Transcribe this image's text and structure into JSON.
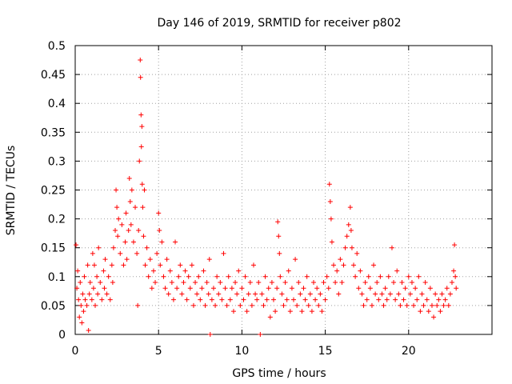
{
  "chart_data": {
    "type": "scatter",
    "title": "Day 146 of 2019, SRMTID for receiver p802",
    "xlabel": "GPS time / hours",
    "ylabel": "SRMTID / TECUs",
    "xlim": [
      0,
      25
    ],
    "ylim": [
      0,
      0.5
    ],
    "xticks": [
      0,
      5,
      10,
      15,
      20
    ],
    "xtick_labels": [
      "0",
      "5",
      "10",
      "15",
      "20"
    ],
    "yticks": [
      0,
      0.05,
      0.1,
      0.15,
      0.2,
      0.25,
      0.3,
      0.35,
      0.4,
      0.45,
      0.5
    ],
    "ytick_labels": [
      "0",
      "0.05",
      "0.1",
      "0.15",
      "0.2",
      "0.25",
      "0.3",
      "0.35",
      "0.4",
      "0.45",
      "0.5"
    ],
    "grid": true,
    "marker": "+",
    "color": "#ff0000",
    "series": [
      {
        "name": "SRMTID",
        "points": [
          [
            0.05,
            0.155
          ],
          [
            0.1,
            0.08
          ],
          [
            0.15,
            0.11
          ],
          [
            0.2,
            0.06
          ],
          [
            0.25,
            0.03
          ],
          [
            0.3,
            0.09
          ],
          [
            0.35,
            0.05
          ],
          [
            0.4,
            0.02
          ],
          [
            0.45,
            0.07
          ],
          [
            0.5,
            0.04
          ],
          [
            0.55,
            0.1
          ],
          [
            0.6,
            0.06
          ],
          [
            0.7,
            0.05
          ],
          [
            0.75,
            0.12
          ],
          [
            0.8,
            0.007
          ],
          [
            0.85,
            0.07
          ],
          [
            0.9,
            0.09
          ],
          [
            1.0,
            0.06
          ],
          [
            1.05,
            0.14
          ],
          [
            1.1,
            0.08
          ],
          [
            1.15,
            0.12
          ],
          [
            1.2,
            0.05
          ],
          [
            1.3,
            0.1
          ],
          [
            1.35,
            0.07
          ],
          [
            1.4,
            0.15
          ],
          [
            1.5,
            0.09
          ],
          [
            1.6,
            0.06
          ],
          [
            1.7,
            0.11
          ],
          [
            1.75,
            0.08
          ],
          [
            1.8,
            0.13
          ],
          [
            1.9,
            0.07
          ],
          [
            2.0,
            0.1
          ],
          [
            2.1,
            0.06
          ],
          [
            2.2,
            0.12
          ],
          [
            2.25,
            0.09
          ],
          [
            2.3,
            0.15
          ],
          [
            2.4,
            0.18
          ],
          [
            2.45,
            0.25
          ],
          [
            2.5,
            0.22
          ],
          [
            2.55,
            0.17
          ],
          [
            2.6,
            0.2
          ],
          [
            2.7,
            0.14
          ],
          [
            2.8,
            0.19
          ],
          [
            2.9,
            0.12
          ],
          [
            3.0,
            0.16
          ],
          [
            3.05,
            0.21
          ],
          [
            3.1,
            0.13
          ],
          [
            3.2,
            0.18
          ],
          [
            3.25,
            0.27
          ],
          [
            3.3,
            0.23
          ],
          [
            3.35,
            0.19
          ],
          [
            3.4,
            0.25
          ],
          [
            3.5,
            0.16
          ],
          [
            3.6,
            0.22
          ],
          [
            3.7,
            0.14
          ],
          [
            3.75,
            0.05
          ],
          [
            3.8,
            0.18
          ],
          [
            3.85,
            0.3
          ],
          [
            3.9,
            0.475
          ],
          [
            3.92,
            0.445
          ],
          [
            3.95,
            0.38
          ],
          [
            3.97,
            0.325
          ],
          [
            4.0,
            0.36
          ],
          [
            4.02,
            0.26
          ],
          [
            4.05,
            0.22
          ],
          [
            4.1,
            0.17
          ],
          [
            4.15,
            0.25
          ],
          [
            4.2,
            0.12
          ],
          [
            4.3,
            0.15
          ],
          [
            4.4,
            0.1
          ],
          [
            4.5,
            0.13
          ],
          [
            4.6,
            0.08
          ],
          [
            4.7,
            0.11
          ],
          [
            4.8,
            0.09
          ],
          [
            4.9,
            0.14
          ],
          [
            5.0,
            0.21
          ],
          [
            5.05,
            0.18
          ],
          [
            5.1,
            0.12
          ],
          [
            5.2,
            0.16
          ],
          [
            5.3,
            0.1
          ],
          [
            5.4,
            0.08
          ],
          [
            5.5,
            0.13
          ],
          [
            5.6,
            0.07
          ],
          [
            5.7,
            0.11
          ],
          [
            5.8,
            0.09
          ],
          [
            5.9,
            0.06
          ],
          [
            6.0,
            0.16
          ],
          [
            6.1,
            0.08
          ],
          [
            6.2,
            0.1
          ],
          [
            6.3,
            0.12
          ],
          [
            6.4,
            0.07
          ],
          [
            6.5,
            0.09
          ],
          [
            6.6,
            0.11
          ],
          [
            6.7,
            0.06
          ],
          [
            6.8,
            0.1
          ],
          [
            6.9,
            0.08
          ],
          [
            7.0,
            0.12
          ],
          [
            7.1,
            0.05
          ],
          [
            7.2,
            0.09
          ],
          [
            7.3,
            0.07
          ],
          [
            7.4,
            0.1
          ],
          [
            7.5,
            0.06
          ],
          [
            7.6,
            0.08
          ],
          [
            7.7,
            0.11
          ],
          [
            7.8,
            0.05
          ],
          [
            7.9,
            0.09
          ],
          [
            8.0,
            0.07
          ],
          [
            8.05,
            0.13
          ],
          [
            8.1,
            0.0
          ],
          [
            8.2,
            0.06
          ],
          [
            8.3,
            0.08
          ],
          [
            8.4,
            0.05
          ],
          [
            8.5,
            0.1
          ],
          [
            8.6,
            0.07
          ],
          [
            8.7,
            0.09
          ],
          [
            8.8,
            0.06
          ],
          [
            8.9,
            0.14
          ],
          [
            9.0,
            0.08
          ],
          [
            9.1,
            0.05
          ],
          [
            9.2,
            0.1
          ],
          [
            9.3,
            0.06
          ],
          [
            9.4,
            0.08
          ],
          [
            9.5,
            0.04
          ],
          [
            9.6,
            0.09
          ],
          [
            9.7,
            0.07
          ],
          [
            9.8,
            0.11
          ],
          [
            9.9,
            0.05
          ],
          [
            10.0,
            0.08
          ],
          [
            10.1,
            0.06
          ],
          [
            10.2,
            0.1
          ],
          [
            10.3,
            0.04
          ],
          [
            10.4,
            0.07
          ],
          [
            10.5,
            0.09
          ],
          [
            10.6,
            0.05
          ],
          [
            10.7,
            0.12
          ],
          [
            10.8,
            0.07
          ],
          [
            10.9,
            0.06
          ],
          [
            11.0,
            0.09
          ],
          [
            11.1,
            0.0
          ],
          [
            11.2,
            0.07
          ],
          [
            11.3,
            0.05
          ],
          [
            11.4,
            0.1
          ],
          [
            11.5,
            0.06
          ],
          [
            11.6,
            0.08
          ],
          [
            11.7,
            0.03
          ],
          [
            11.8,
            0.09
          ],
          [
            11.9,
            0.06
          ],
          [
            12.0,
            0.04
          ],
          [
            12.1,
            0.08
          ],
          [
            12.15,
            0.195
          ],
          [
            12.2,
            0.17
          ],
          [
            12.25,
            0.14
          ],
          [
            12.3,
            0.1
          ],
          [
            12.4,
            0.07
          ],
          [
            12.5,
            0.05
          ],
          [
            12.6,
            0.09
          ],
          [
            12.7,
            0.06
          ],
          [
            12.8,
            0.11
          ],
          [
            12.9,
            0.04
          ],
          [
            13.0,
            0.08
          ],
          [
            13.1,
            0.06
          ],
          [
            13.2,
            0.13
          ],
          [
            13.3,
            0.05
          ],
          [
            13.4,
            0.09
          ],
          [
            13.5,
            0.07
          ],
          [
            13.6,
            0.04
          ],
          [
            13.7,
            0.08
          ],
          [
            13.8,
            0.06
          ],
          [
            13.9,
            0.1
          ],
          [
            14.0,
            0.05
          ],
          [
            14.1,
            0.07
          ],
          [
            14.2,
            0.04
          ],
          [
            14.3,
            0.09
          ],
          [
            14.4,
            0.06
          ],
          [
            14.5,
            0.08
          ],
          [
            14.6,
            0.05
          ],
          [
            14.7,
            0.07
          ],
          [
            14.8,
            0.04
          ],
          [
            14.9,
            0.09
          ],
          [
            15.0,
            0.06
          ],
          [
            15.1,
            0.1
          ],
          [
            15.2,
            0.08
          ],
          [
            15.25,
            0.26
          ],
          [
            15.3,
            0.23
          ],
          [
            15.35,
            0.2
          ],
          [
            15.4,
            0.16
          ],
          [
            15.5,
            0.12
          ],
          [
            15.6,
            0.09
          ],
          [
            15.7,
            0.11
          ],
          [
            15.8,
            0.07
          ],
          [
            15.9,
            0.13
          ],
          [
            16.0,
            0.09
          ],
          [
            16.1,
            0.12
          ],
          [
            16.2,
            0.15
          ],
          [
            16.3,
            0.17
          ],
          [
            16.4,
            0.19
          ],
          [
            16.5,
            0.22
          ],
          [
            16.55,
            0.18
          ],
          [
            16.6,
            0.15
          ],
          [
            16.7,
            0.12
          ],
          [
            16.8,
            0.1
          ],
          [
            16.9,
            0.14
          ],
          [
            17.0,
            0.08
          ],
          [
            17.1,
            0.11
          ],
          [
            17.2,
            0.07
          ],
          [
            17.3,
            0.05
          ],
          [
            17.4,
            0.09
          ],
          [
            17.5,
            0.06
          ],
          [
            17.6,
            0.1
          ],
          [
            17.7,
            0.08
          ],
          [
            17.8,
            0.05
          ],
          [
            17.9,
            0.12
          ],
          [
            18.0,
            0.07
          ],
          [
            18.1,
            0.09
          ],
          [
            18.2,
            0.06
          ],
          [
            18.3,
            0.1
          ],
          [
            18.4,
            0.07
          ],
          [
            18.5,
            0.05
          ],
          [
            18.6,
            0.08
          ],
          [
            18.7,
            0.06
          ],
          [
            18.8,
            0.1
          ],
          [
            18.9,
            0.07
          ],
          [
            19.0,
            0.15
          ],
          [
            19.1,
            0.09
          ],
          [
            19.2,
            0.06
          ],
          [
            19.3,
            0.11
          ],
          [
            19.4,
            0.07
          ],
          [
            19.5,
            0.05
          ],
          [
            19.6,
            0.09
          ],
          [
            19.7,
            0.06
          ],
          [
            19.8,
            0.08
          ],
          [
            19.9,
            0.05
          ],
          [
            20.0,
            0.1
          ],
          [
            20.1,
            0.07
          ],
          [
            20.2,
            0.09
          ],
          [
            20.3,
            0.05
          ],
          [
            20.4,
            0.08
          ],
          [
            20.5,
            0.06
          ],
          [
            20.6,
            0.1
          ],
          [
            20.7,
            0.04
          ],
          [
            20.8,
            0.07
          ],
          [
            20.9,
            0.05
          ],
          [
            21.0,
            0.09
          ],
          [
            21.1,
            0.06
          ],
          [
            21.2,
            0.04
          ],
          [
            21.3,
            0.08
          ],
          [
            21.4,
            0.05
          ],
          [
            21.5,
            0.03
          ],
          [
            21.6,
            0.07
          ],
          [
            21.7,
            0.05
          ],
          [
            21.8,
            0.06
          ],
          [
            21.9,
            0.04
          ],
          [
            22.0,
            0.07
          ],
          [
            22.1,
            0.05
          ],
          [
            22.2,
            0.06
          ],
          [
            22.3,
            0.08
          ],
          [
            22.4,
            0.05
          ],
          [
            22.5,
            0.07
          ],
          [
            22.6,
            0.09
          ],
          [
            22.7,
            0.11
          ],
          [
            22.75,
            0.155
          ],
          [
            22.8,
            0.1
          ],
          [
            22.85,
            0.08
          ]
        ]
      }
    ]
  }
}
